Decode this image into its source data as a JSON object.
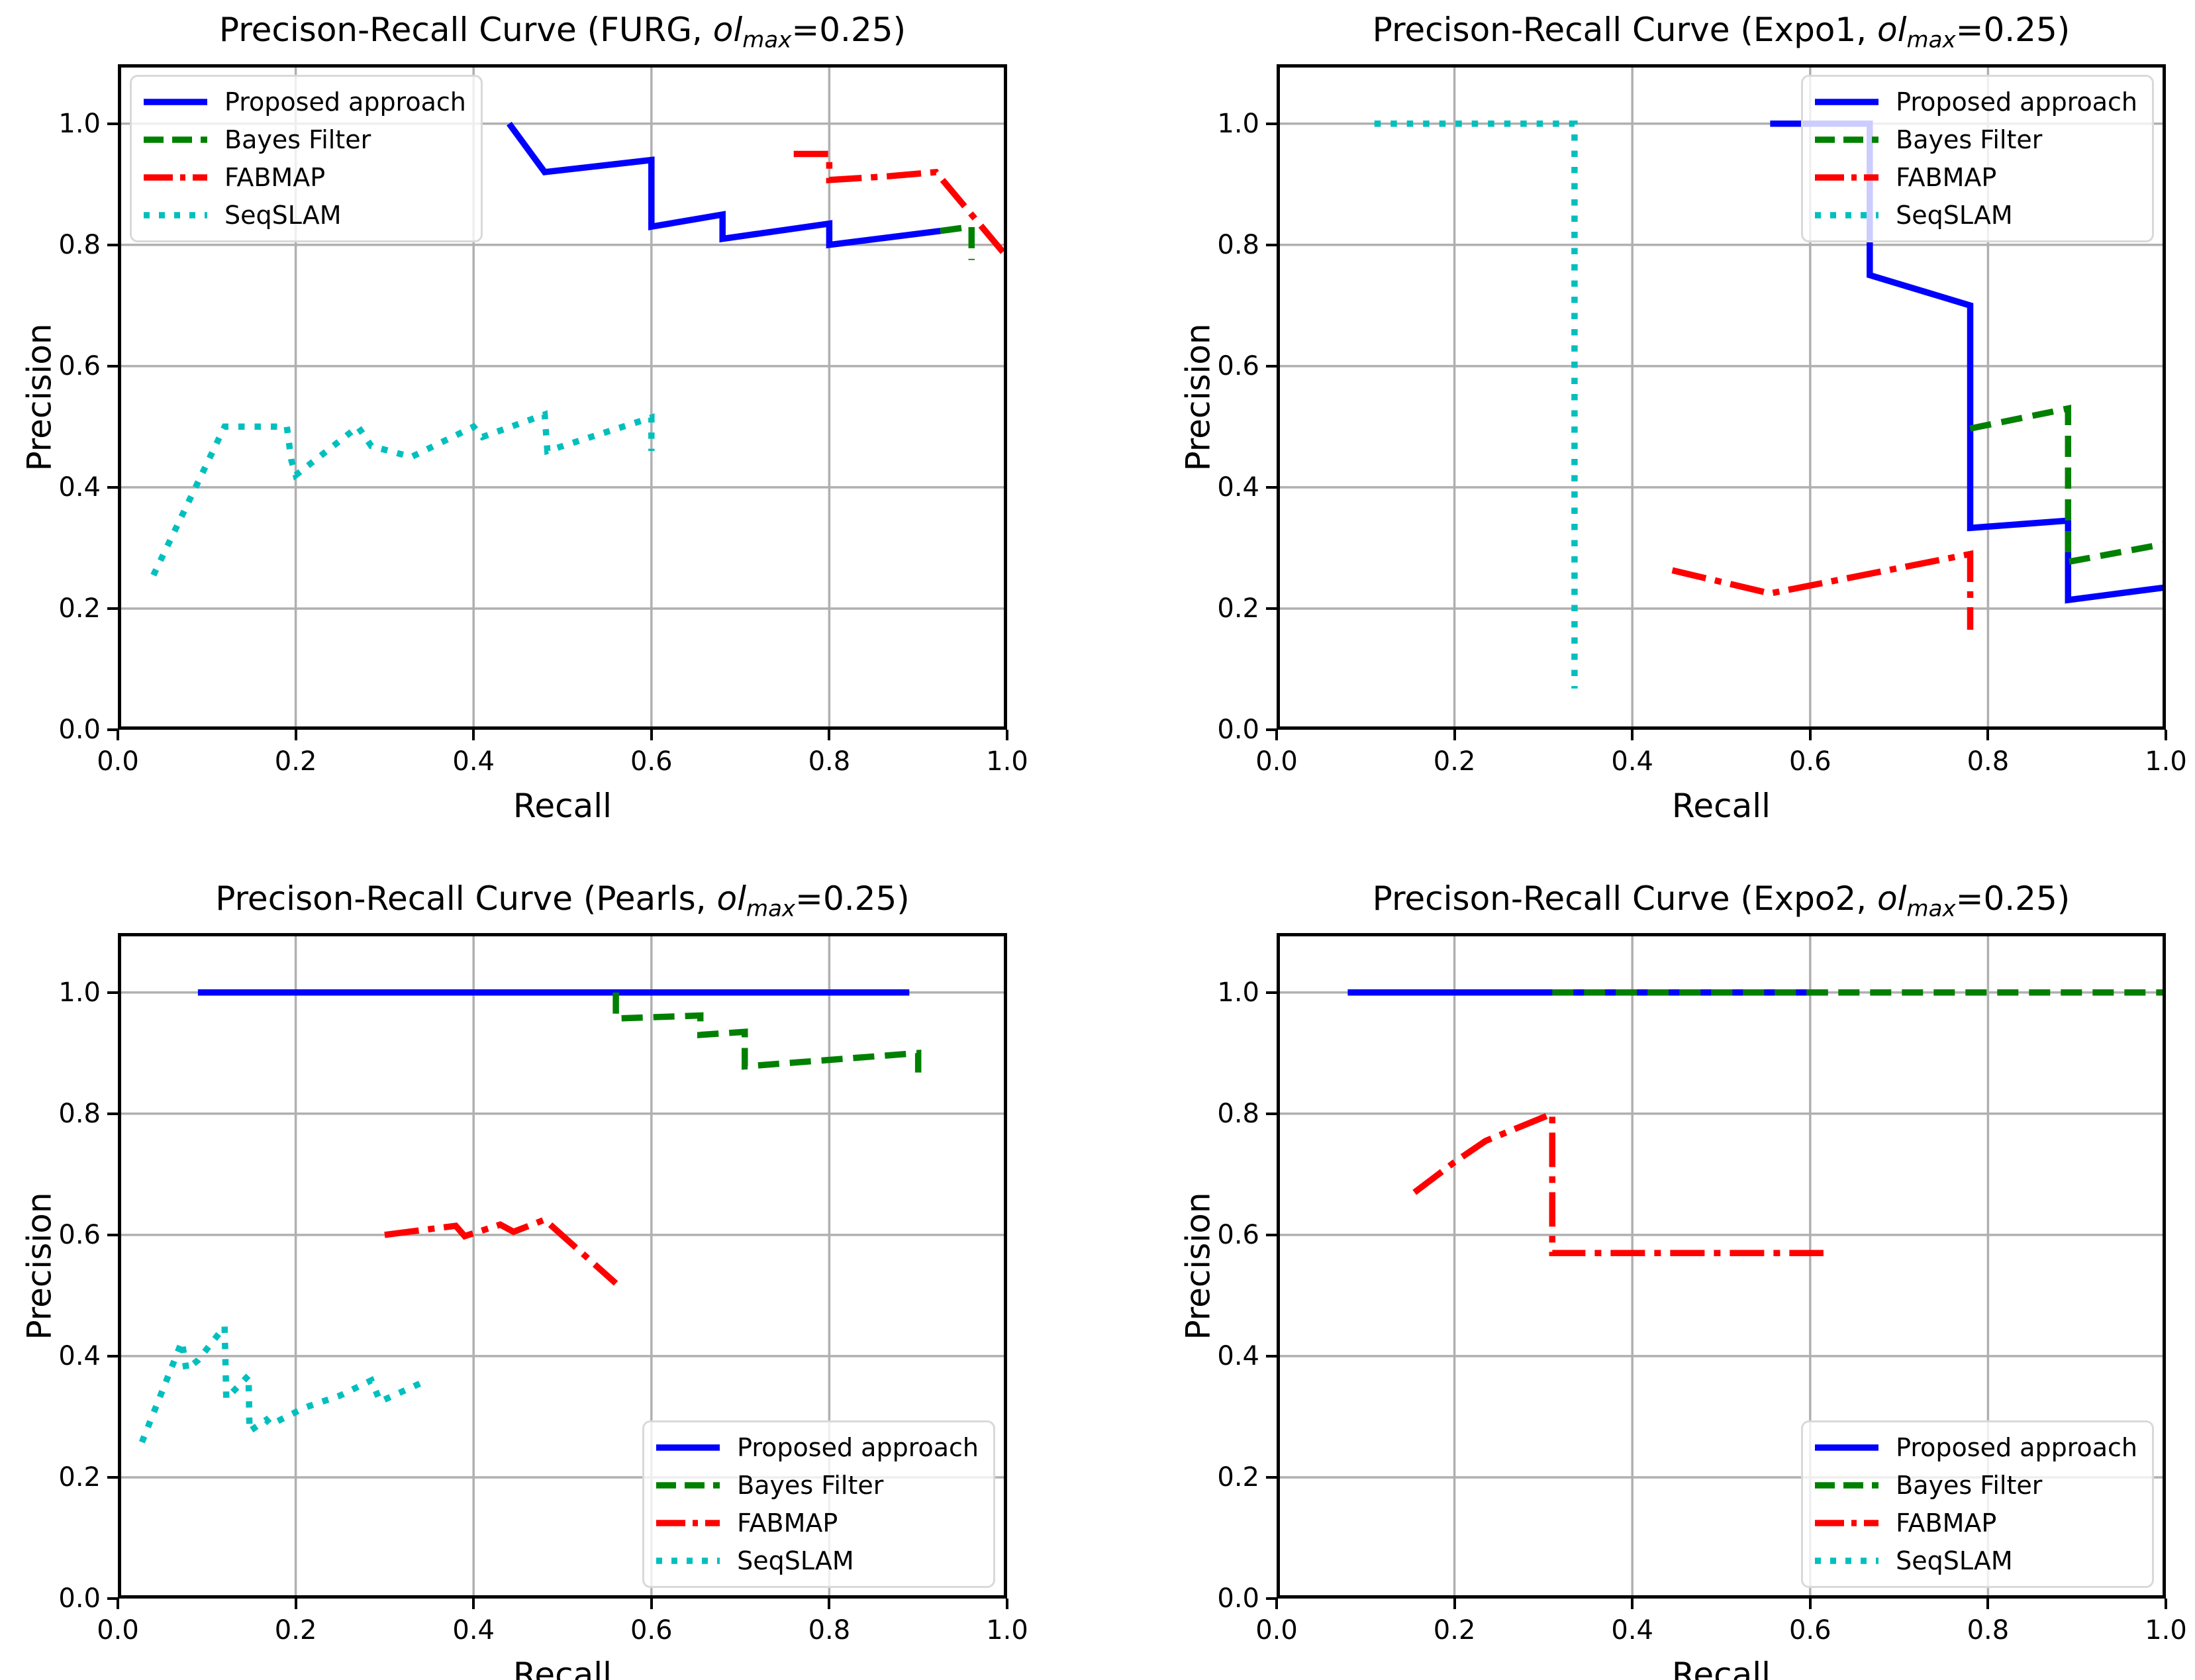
{
  "figure": {
    "background": "#ffffff"
  },
  "colors": {
    "proposed": "#0000ff",
    "bayes": "#008000",
    "fabmap": "#ff0000",
    "seqslam": "#00bfbf",
    "grid": "#b0b0b0",
    "spine": "#000000",
    "legend_border": "#d9d9d9",
    "text": "#000000"
  },
  "axes": {
    "xlabel": "Recall",
    "ylabel": "Precision",
    "xticks": [
      "0.0",
      "0.2",
      "0.4",
      "0.6",
      "0.8",
      "1.0"
    ],
    "yticks": [
      "0.0",
      "0.2",
      "0.4",
      "0.6",
      "0.8",
      "1.0"
    ],
    "xtick_values": [
      0,
      0.2,
      0.4,
      0.6,
      0.8,
      1.0
    ],
    "ytick_values": [
      0,
      0.2,
      0.4,
      0.6,
      0.8,
      1.0
    ],
    "xlim": [
      0,
      1.0
    ],
    "ylim": [
      0,
      1.098
    ],
    "grid": true,
    "legend_labels": [
      "Proposed approach",
      "Bayes Filter",
      "FABMAP",
      "SeqSLAM"
    ]
  },
  "chart_data": [
    {
      "id": "furg",
      "type": "line",
      "title": {
        "pre": "Precison-Recall Curve (FURG, ",
        "var": "ol",
        "sub": "max",
        "post": "=0.25)"
      },
      "legend_position": "top-left",
      "series": [
        {
          "name": "Proposed approach",
          "color_key": "proposed",
          "style": "solid",
          "points": [
            [
              0.44,
              1.0
            ],
            [
              0.48,
              0.92
            ],
            [
              0.6,
              0.94
            ],
            [
              0.6,
              0.83
            ],
            [
              0.68,
              0.85
            ],
            [
              0.68,
              0.81
            ],
            [
              0.8,
              0.835
            ],
            [
              0.8,
              0.8
            ],
            [
              0.925,
              0.823
            ]
          ]
        },
        {
          "name": "Bayes Filter",
          "color_key": "bayes",
          "style": "dashed",
          "points": [
            [
              0.925,
              0.823
            ],
            [
              0.96,
              0.83
            ],
            [
              0.96,
              0.775
            ]
          ]
        },
        {
          "name": "FABMAP",
          "color_key": "fabmap",
          "style": "dashdot",
          "points": [
            [
              0.76,
              0.95
            ],
            [
              0.8,
              0.95
            ],
            [
              0.8,
              0.907
            ],
            [
              0.865,
              0.913
            ],
            [
              0.92,
              0.92
            ],
            [
              1.0,
              0.78
            ]
          ]
        },
        {
          "name": "SeqSLAM",
          "color_key": "seqslam",
          "style": "dotted",
          "points": [
            [
              0.04,
              0.255
            ],
            [
              0.12,
              0.5
            ],
            [
              0.19,
              0.5
            ],
            [
              0.195,
              0.445
            ],
            [
              0.2,
              0.42
            ],
            [
              0.27,
              0.5
            ],
            [
              0.285,
              0.468
            ],
            [
              0.33,
              0.45
            ],
            [
              0.4,
              0.5
            ],
            [
              0.41,
              0.483
            ],
            [
              0.48,
              0.52
            ],
            [
              0.483,
              0.46
            ],
            [
              0.6,
              0.515
            ],
            [
              0.6,
              0.46
            ]
          ]
        }
      ]
    },
    {
      "id": "expo1",
      "type": "line",
      "title": {
        "pre": "Precison-Recall Curve (Expo1, ",
        "var": "ol",
        "sub": "max",
        "post": "=0.25)"
      },
      "legend_position": "top-right",
      "series": [
        {
          "name": "Proposed approach",
          "color_key": "proposed",
          "style": "solid",
          "points": [
            [
              0.555,
              1.0
            ],
            [
              0.667,
              1.0
            ],
            [
              0.667,
              0.75
            ],
            [
              0.78,
              0.7
            ],
            [
              0.78,
              0.333
            ],
            [
              0.89,
              0.345
            ],
            [
              0.89,
              0.214
            ],
            [
              1.0,
              0.235
            ]
          ]
        },
        {
          "name": "Bayes Filter",
          "color_key": "bayes",
          "style": "dashed",
          "points": [
            [
              0.78,
              0.497
            ],
            [
              0.89,
              0.53
            ],
            [
              0.89,
              0.277
            ],
            [
              1.0,
              0.307
            ]
          ]
        },
        {
          "name": "FABMAP",
          "color_key": "fabmap",
          "style": "dashdot",
          "points": [
            [
              0.445,
              0.263
            ],
            [
              0.555,
              0.225
            ],
            [
              0.78,
              0.29
            ],
            [
              0.78,
              0.165
            ]
          ]
        },
        {
          "name": "SeqSLAM",
          "color_key": "seqslam",
          "style": "dotted",
          "points": [
            [
              0.11,
              1.0
            ],
            [
              0.335,
              1.0
            ],
            [
              0.335,
              0.068
            ]
          ]
        }
      ]
    },
    {
      "id": "pearls",
      "type": "line",
      "title": {
        "pre": "Precison-Recall Curve (Pearls, ",
        "var": "ol",
        "sub": "max",
        "post": "=0.25)"
      },
      "legend_position": "bottom-right",
      "series": [
        {
          "name": "Proposed approach",
          "color_key": "proposed",
          "style": "solid",
          "points": [
            [
              0.09,
              1.0
            ],
            [
              0.89,
              1.0
            ]
          ]
        },
        {
          "name": "Bayes Filter",
          "color_key": "bayes",
          "style": "dashed",
          "points": [
            [
              0.56,
              1.0
            ],
            [
              0.56,
              0.957
            ],
            [
              0.655,
              0.962
            ],
            [
              0.655,
              0.93
            ],
            [
              0.705,
              0.935
            ],
            [
              0.705,
              0.878
            ],
            [
              0.9,
              0.9
            ],
            [
              0.9,
              0.857
            ]
          ]
        },
        {
          "name": "FABMAP",
          "color_key": "fabmap",
          "style": "dashdot",
          "points": [
            [
              0.3,
              0.6
            ],
            [
              0.38,
              0.615
            ],
            [
              0.39,
              0.598
            ],
            [
              0.43,
              0.617
            ],
            [
              0.445,
              0.605
            ],
            [
              0.48,
              0.625
            ],
            [
              0.56,
              0.52
            ]
          ]
        },
        {
          "name": "SeqSLAM",
          "color_key": "seqslam",
          "style": "dotted",
          "points": [
            [
              0.027,
              0.258
            ],
            [
              0.072,
              0.424
            ],
            [
              0.077,
              0.378
            ],
            [
              0.09,
              0.393
            ],
            [
              0.12,
              0.449
            ],
            [
              0.122,
              0.33
            ],
            [
              0.147,
              0.368
            ],
            [
              0.148,
              0.276
            ],
            [
              0.167,
              0.295
            ],
            [
              0.172,
              0.287
            ],
            [
              0.21,
              0.315
            ],
            [
              0.25,
              0.335
            ],
            [
              0.285,
              0.36
            ],
            [
              0.295,
              0.325
            ],
            [
              0.34,
              0.355
            ]
          ]
        }
      ]
    },
    {
      "id": "expo2",
      "type": "line",
      "title": {
        "pre": "Precison-Recall Curve (Expo2, ",
        "var": "ol",
        "sub": "max",
        "post": "=0.25)"
      },
      "legend_position": "bottom-right",
      "series": [
        {
          "name": "Proposed approach",
          "color_key": "proposed",
          "style": "solid",
          "points": [
            [
              0.08,
              1.0
            ],
            [
              0.62,
              1.0
            ]
          ]
        },
        {
          "name": "Bayes Filter",
          "color_key": "bayes",
          "style": "dashed",
          "points": [
            [
              0.31,
              1.0
            ],
            [
              1.0,
              1.0
            ]
          ]
        },
        {
          "name": "FABMAP",
          "color_key": "fabmap",
          "style": "dashdot",
          "points": [
            [
              0.155,
              0.67
            ],
            [
              0.2,
              0.72
            ],
            [
              0.235,
              0.755
            ],
            [
              0.31,
              0.8
            ],
            [
              0.31,
              0.57
            ],
            [
              0.615,
              0.57
            ]
          ]
        },
        {
          "name": "SeqSLAM",
          "color_key": "seqslam",
          "style": "dotted",
          "points": []
        }
      ]
    }
  ]
}
